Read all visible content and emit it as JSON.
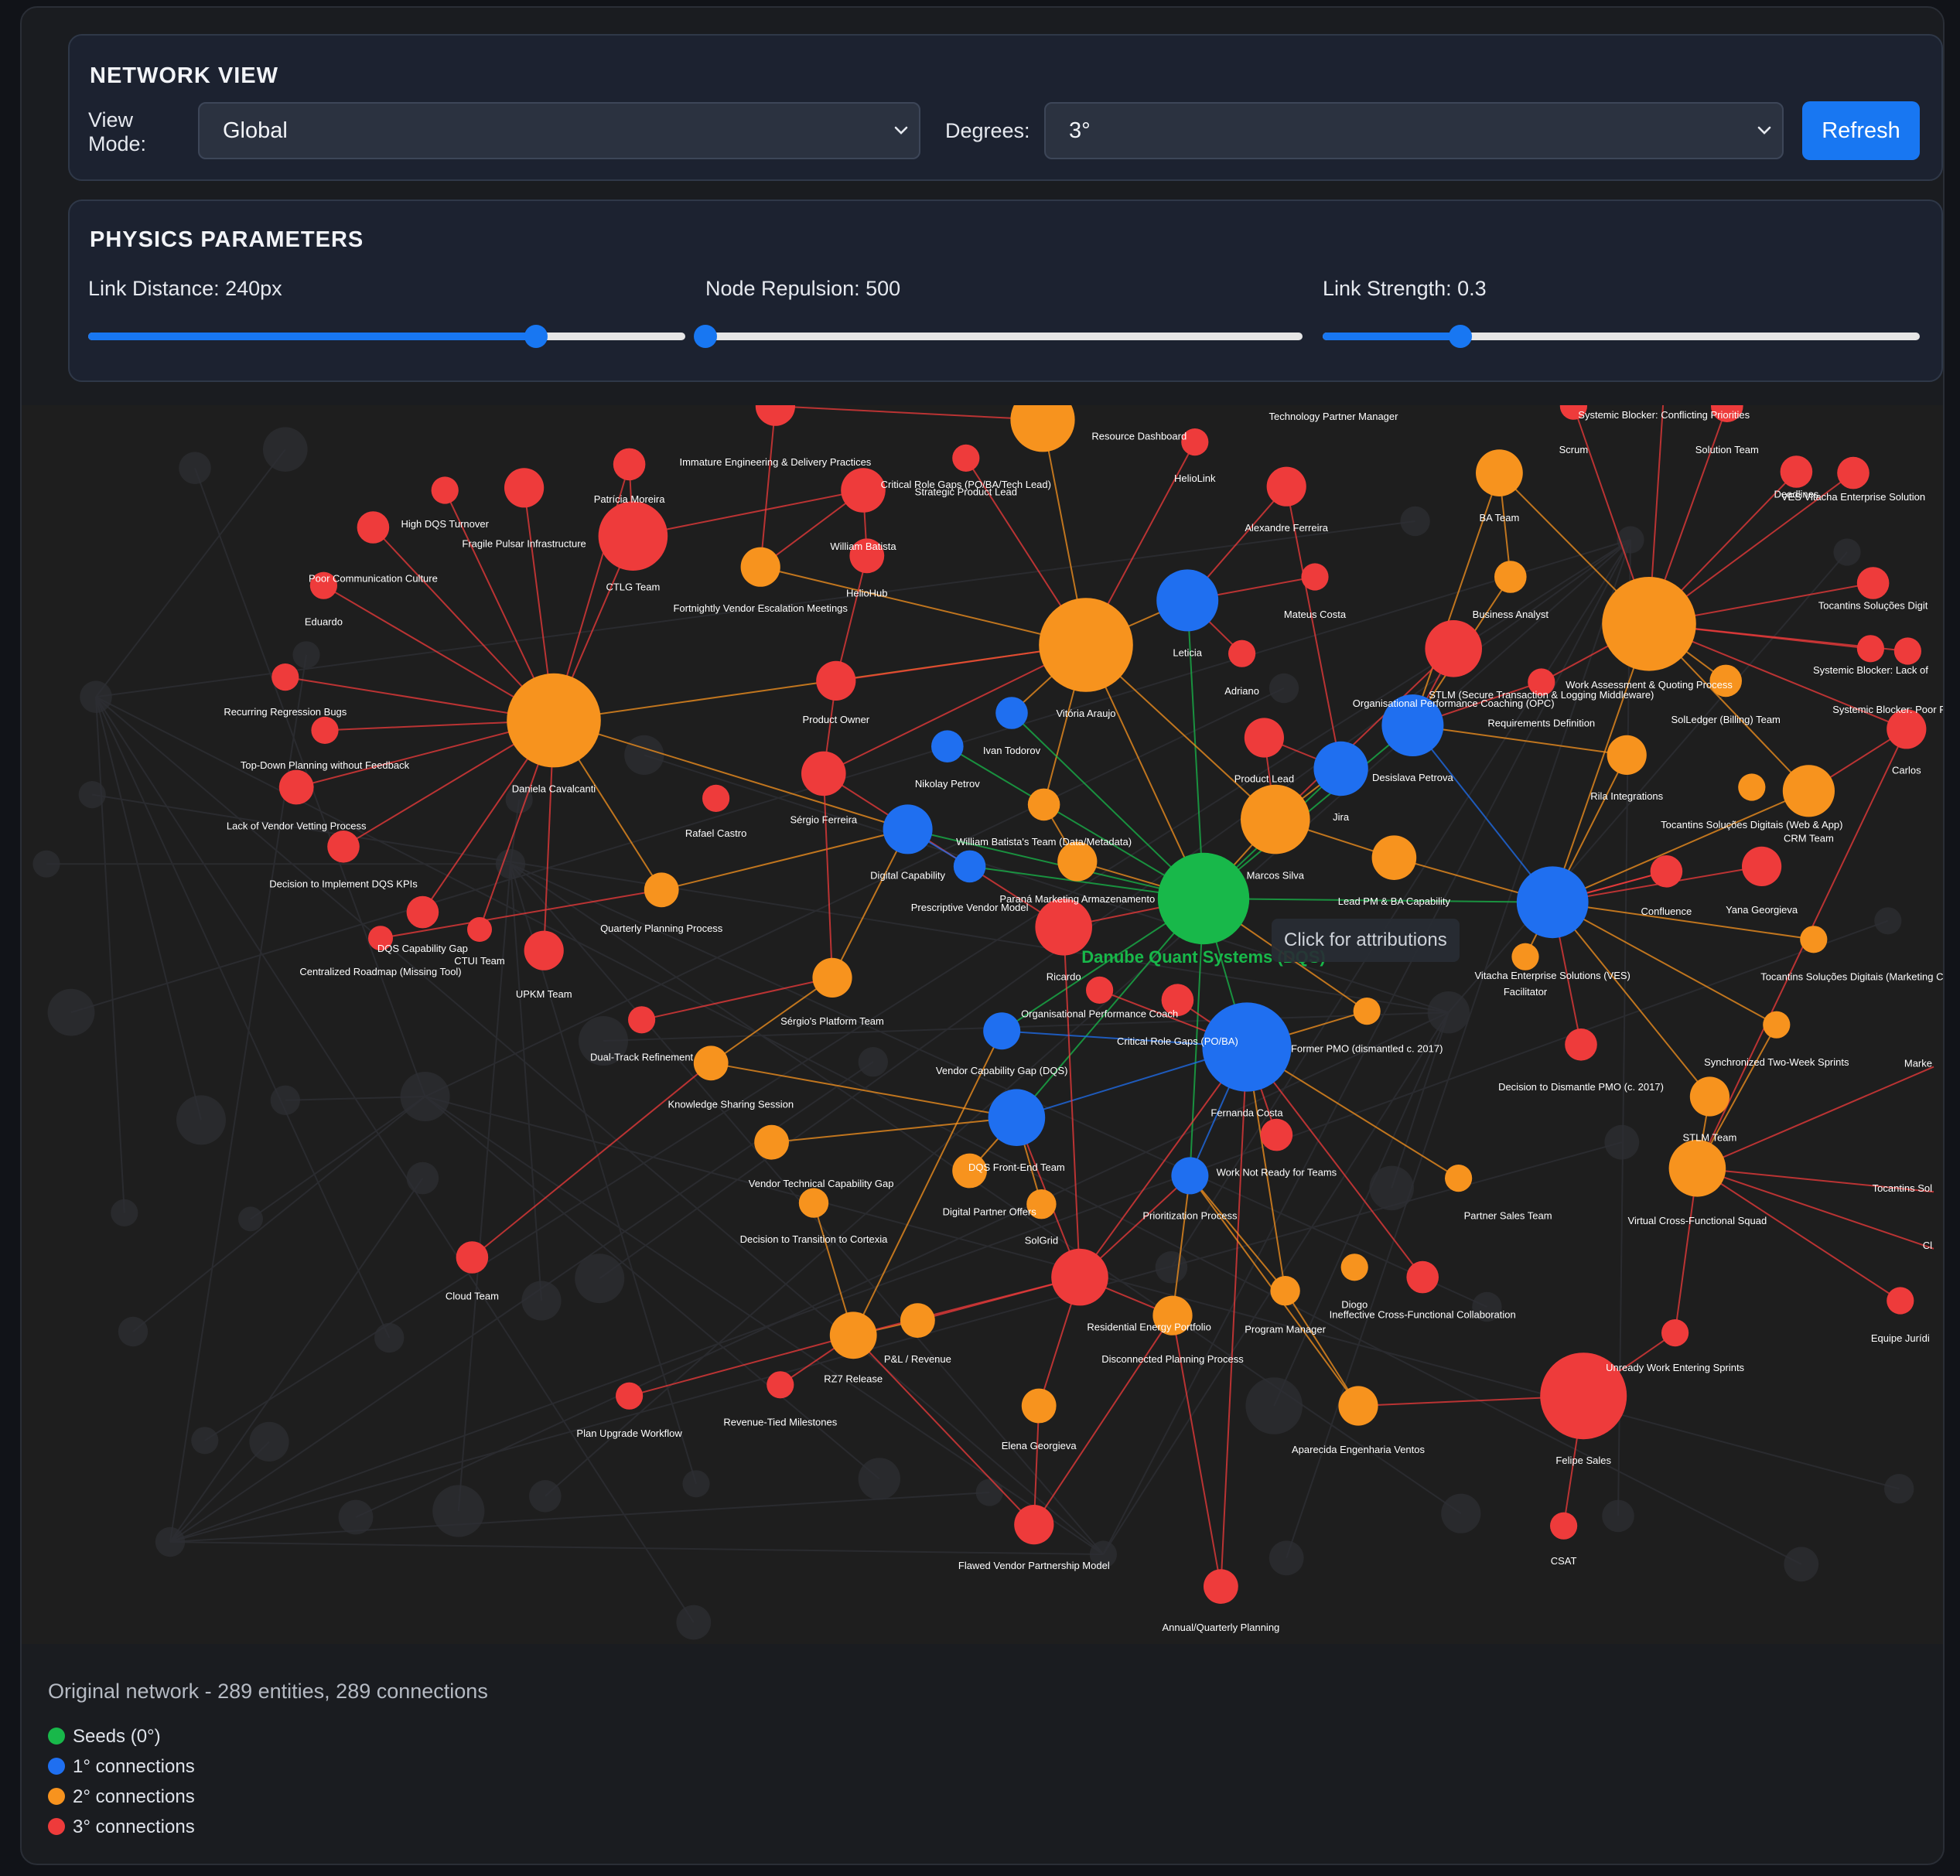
{
  "network_view": {
    "title": "NETWORK VIEW",
    "view_mode_label": "View Mode:",
    "view_mode_value": "Global",
    "degrees_label": "Degrees:",
    "degrees_value": "3°",
    "refresh_label": "Refresh"
  },
  "physics": {
    "title": "PHYSICS PARAMETERS",
    "link_distance_label": "Link Distance: 240px",
    "link_distance_fraction": 0.75,
    "node_repulsion_label": "Node Repulsion: 500",
    "node_repulsion_fraction": 0.0,
    "link_strength_label": "Link Strength: 0.3",
    "link_strength_fraction": 0.23
  },
  "tooltip": "Click for attributions",
  "footer": {
    "summary": "Original network - 289 entities, 289 connections",
    "legend": [
      {
        "label": "Seeds (0°)",
        "color": "#18b84a"
      },
      {
        "label": "1° connections",
        "color": "#1f6ff0"
      },
      {
        "label": "2° connections",
        "color": "#f7931e"
      },
      {
        "label": "3° connections",
        "color": "#ee3b3b"
      }
    ]
  },
  "colors": {
    "seed": "#18b84a",
    "first": "#1f6ff0",
    "second": "#f7931e",
    "third": "#ee3b3b",
    "ghost": "#2e2f33"
  },
  "graph": {
    "nodes": [
      {
        "id": "dqs",
        "label": "Danube Quant Systems (DQS)",
        "deg": 0,
        "seed": true
      },
      {
        "id": "fernanda",
        "label": "Fernanda Costa",
        "deg": 1
      },
      {
        "id": "ves",
        "label": "Vitacha Enterprise Solutions (VES)",
        "deg": 1
      },
      {
        "id": "leticia",
        "label": "Leticia",
        "deg": 1
      },
      {
        "id": "desislava",
        "label": "Desislava Petrova",
        "deg": 1
      },
      {
        "id": "jira",
        "label": "Jira",
        "deg": 1
      },
      {
        "id": "digcap",
        "label": "Digital Capability",
        "deg": 1
      },
      {
        "id": "dqsfe",
        "label": "DQS Front-End Team",
        "deg": 1
      },
      {
        "id": "vcg",
        "label": "Vendor Capability Gap (DQS)",
        "deg": 1
      },
      {
        "id": "prio",
        "label": "Prioritization Process",
        "deg": 1
      },
      {
        "id": "ivan",
        "label": "Ivan Todorov",
        "deg": 1
      },
      {
        "id": "nikolay",
        "label": "Nikolay Petrov",
        "deg": 1
      },
      {
        "id": "pvm",
        "label": "Prescriptive Vendor Model",
        "deg": 1
      },
      {
        "id": "daniela",
        "label": "Daniela Cavalcanti",
        "deg": 2
      },
      {
        "id": "vitoria",
        "label": "Vitória Araujo",
        "deg": 2
      },
      {
        "id": "marcos",
        "label": "Marcos Silva",
        "deg": 2
      },
      {
        "id": "wmp",
        "label": "Work Assessment & Quoting Process",
        "deg": 2
      },
      {
        "id": "vcfs",
        "label": "Virtual Cross-Functional Squad",
        "deg": 2
      },
      {
        "id": "crm",
        "label": "CRM Team",
        "deg": 2
      },
      {
        "id": "rz7",
        "label": "RZ7 Release",
        "deg": 2
      },
      {
        "id": "ba",
        "label": "BA Team",
        "deg": 2
      },
      {
        "id": "resdash",
        "label": "Resource Dashboard",
        "deg": 2
      },
      {
        "id": "fvem",
        "label": "Fortnightly Vendor Escalation Meetings",
        "deg": 2
      },
      {
        "id": "qpp",
        "label": "Quarterly Planning Process",
        "deg": 2
      },
      {
        "id": "spt",
        "label": "Sérgio's Platform Team",
        "deg": 2
      },
      {
        "id": "kss",
        "label": "Knowledge Sharing Session",
        "deg": 2
      },
      {
        "id": "vtcg",
        "label": "Vendor Technical Capability Gap",
        "deg": 2
      },
      {
        "id": "dtc",
        "label": "Decision to Transition to Cortexia",
        "deg": 2
      },
      {
        "id": "dpo",
        "label": "Digital Partner Offers",
        "deg": 2
      },
      {
        "id": "solgrid",
        "label": "SolGrid",
        "deg": 2
      },
      {
        "id": "pnl",
        "label": "P&L / Revenue",
        "deg": 2
      },
      {
        "id": "dpp",
        "label": "Disconnected Planning Process",
        "deg": 2
      },
      {
        "id": "elena",
        "label": "Elena Georgieva",
        "deg": 2
      },
      {
        "id": "aev",
        "label": "Aparecida Engenharia Ventos",
        "deg": 2
      },
      {
        "id": "pm",
        "label": "Program Manager",
        "deg": 2
      },
      {
        "id": "diogo",
        "label": "Diogo",
        "deg": 2
      },
      {
        "id": "pst",
        "label": "Partner Sales Team",
        "deg": 2
      },
      {
        "id": "stlm",
        "label": "STLM Team",
        "deg": 2
      },
      {
        "id": "stws",
        "label": "Synchronized Two-Week Sprints",
        "deg": 2
      },
      {
        "id": "tsdmc",
        "label": "Tocantins Soluções Digitais (Marketing Cloud)",
        "deg": 2
      },
      {
        "id": "fpmo",
        "label": "Former PMO (dismantled c. 2017)",
        "deg": 2
      },
      {
        "id": "bizan",
        "label": "Business Analyst",
        "deg": 2
      },
      {
        "id": "rila",
        "label": "Rila Integrations",
        "deg": 2
      },
      {
        "id": "tsdwa",
        "label": "Tocantins Soluções Digitais (Web & App)",
        "deg": 2
      },
      {
        "id": "lpm",
        "label": "Lead PM & BA Capability",
        "deg": 2
      },
      {
        "id": "wbt",
        "label": "William Batista's Team (Data/Metadata)",
        "deg": 2
      },
      {
        "id": "pma",
        "label": "Paraná Marketing Armazenamento",
        "deg": 2
      },
      {
        "id": "facil",
        "label": "Facilitator",
        "deg": 2
      },
      {
        "id": "soledger",
        "label": "SolLedger (Billing) Team",
        "deg": 2
      },
      {
        "id": "tpm",
        "label": "Technology Partner Manager",
        "deg": 2
      },
      {
        "id": "felipe",
        "label": "Felipe Sales",
        "deg": 3
      },
      {
        "id": "ctlg",
        "label": "CTLG Team",
        "deg": 3
      },
      {
        "id": "rep",
        "label": "Residential Energy Portfolio",
        "deg": 3
      },
      {
        "id": "ricardo",
        "label": "Ricardo",
        "deg": 3
      },
      {
        "id": "opc",
        "label": "Organisational Performance Coaching (OPC)",
        "deg": 3
      },
      {
        "id": "william",
        "label": "William Batista",
        "deg": 3
      },
      {
        "id": "patricia",
        "label": "Patrícia Moreira",
        "deg": 3
      },
      {
        "id": "hdqs",
        "label": "High DQS Turnover",
        "deg": 3
      },
      {
        "id": "fpi",
        "label": "Fragile Pulsar Infrastructure",
        "deg": 3
      },
      {
        "id": "pcc",
        "label": "Poor Communication Culture",
        "deg": 3
      },
      {
        "id": "eduardo",
        "label": "Eduardo",
        "deg": 3
      },
      {
        "id": "rrb",
        "label": "Recurring Regression Bugs",
        "deg": 3
      },
      {
        "id": "tdp",
        "label": "Top-Down Planning without Feedback",
        "deg": 3
      },
      {
        "id": "lvv",
        "label": "Lack of Vendor Vetting Process",
        "deg": 3
      },
      {
        "id": "didk",
        "label": "Decision to Implement DQS KPIs",
        "deg": 3
      },
      {
        "id": "dqscg",
        "label": "DQS Capability Gap",
        "deg": 3
      },
      {
        "id": "ctui",
        "label": "CTUI Team",
        "deg": 3
      },
      {
        "id": "crmt",
        "label": "Centralized Roadmap (Missing Tool)",
        "deg": 3
      },
      {
        "id": "upkm",
        "label": "UPKM Team",
        "deg": 3
      },
      {
        "id": "dtr",
        "label": "Dual-Track Refinement",
        "deg": 3
      },
      {
        "id": "cloud",
        "label": "Cloud Team",
        "deg": 3
      },
      {
        "id": "puw",
        "label": "Plan Upgrade Workflow",
        "deg": 3
      },
      {
        "id": "rtm",
        "label": "Revenue-Tied Milestones",
        "deg": 3
      },
      {
        "id": "fvpm",
        "label": "Flawed Vendor Partnership Model",
        "deg": 3
      },
      {
        "id": "aqp",
        "label": "Annual/Quarterly Planning",
        "deg": 3
      },
      {
        "id": "csat",
        "label": "CSAT",
        "deg": 3
      },
      {
        "id": "uwes",
        "label": "Unready Work Entering Sprints",
        "deg": 3
      },
      {
        "id": "icfc",
        "label": "Ineffective Cross-Functional Collaboration",
        "deg": 3
      },
      {
        "id": "wnrt",
        "label": "Work Not Ready for Teams",
        "deg": 3
      },
      {
        "id": "cprg",
        "label": "Critical Role Gaps (PO/BA)",
        "deg": 3
      },
      {
        "id": "opcoach",
        "label": "Organisational Performance Coach",
        "deg": 3
      },
      {
        "id": "dtdp",
        "label": "Decision to Dismantle PMO (c. 2017)",
        "deg": 3
      },
      {
        "id": "yana",
        "label": "Yana Georgieva",
        "deg": 3
      },
      {
        "id": "confl",
        "label": "Confluence",
        "deg": 3
      },
      {
        "id": "carlos",
        "label": "Carlos",
        "deg": 3
      },
      {
        "id": "pjl",
        "label": "Product Lead",
        "deg": 3
      },
      {
        "id": "adriano",
        "label": "Adriano",
        "deg": 3
      },
      {
        "id": "mateus",
        "label": "Mateus Costa",
        "deg": 3
      },
      {
        "id": "alex",
        "label": "Alexandre Ferreira",
        "deg": 3
      },
      {
        "id": "heliolink",
        "label": "HelioLink",
        "deg": 3
      },
      {
        "id": "crgt",
        "label": "Critical Role Gaps (PO/BA/Tech Lead)",
        "deg": 3
      },
      {
        "id": "spl",
        "label": "Strategic Product Lead",
        "deg": 3
      },
      {
        "id": "iedp",
        "label": "Immature Engineering & Delivery Practices",
        "deg": 3
      },
      {
        "id": "helio",
        "label": "HelioHub",
        "deg": 3
      },
      {
        "id": "po",
        "label": "Product Owner",
        "deg": 3
      },
      {
        "id": "sergio",
        "label": "Sérgio Ferreira",
        "deg": 3
      },
      {
        "id": "rafael",
        "label": "Rafael Castro",
        "deg": 3
      },
      {
        "id": "stlmsec",
        "label": "STLM (Secure Transaction & Logging Middleware)",
        "deg": 3
      },
      {
        "id": "reqdef",
        "label": "Requirements Definition",
        "deg": 3
      },
      {
        "id": "scrum",
        "label": "Scrum",
        "deg": 3
      },
      {
        "id": "soltm",
        "label": "Solution Team",
        "deg": 3
      },
      {
        "id": "sbcp",
        "label": "Systemic Blocker: Conflicting Priorities",
        "deg": 3
      },
      {
        "id": "sblack",
        "label": "Systemic Blocker: Lack of",
        "deg": 3
      },
      {
        "id": "sbpoor",
        "label": "Systemic Blocker: Poor Requirem",
        "deg": 3
      },
      {
        "id": "tsdi",
        "label": "Tocantins Soluções Digit",
        "deg": 3
      },
      {
        "id": "ves2",
        "label": "VES Vitacha Enterprise Solution",
        "deg": 3
      },
      {
        "id": "deadlines",
        "label": "Deadlines",
        "deg": 3
      },
      {
        "id": "ejur",
        "label": "Equipe Jurídi",
        "deg": 3
      },
      {
        "id": "marke",
        "label": "Marke",
        "deg": 3
      },
      {
        "id": "tsol",
        "label": "Tocantins Sol",
        "deg": 3
      },
      {
        "id": "cl",
        "label": "Cl",
        "deg": 3
      }
    ]
  }
}
